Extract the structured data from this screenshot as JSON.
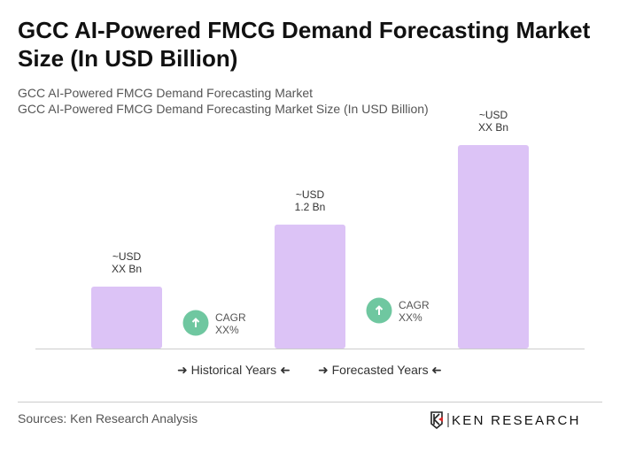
{
  "title": "GCC AI-Powered FMCG Demand Forecasting Market Size (In USD Billion)",
  "subtitle1": "GCC AI-Powered FMCG Demand Forecasting Market",
  "subtitle2": "GCC AI-Powered FMCG Demand Forecasting Market Size (In USD Billion)",
  "chart_data": {
    "type": "bar",
    "categories": [
      "",
      "",
      ""
    ],
    "values": [
      0.6,
      1.2,
      1.97
    ],
    "data_labels": [
      [
        "~USD",
        "XX Bn"
      ],
      [
        "~USD",
        "1.2 Bn"
      ],
      [
        "~USD",
        "XX Bn"
      ]
    ],
    "cagr_labels": [
      [
        "CAGR",
        "XX%"
      ],
      [
        "CAGR",
        "XX%"
      ]
    ],
    "bar_color": "#dcc3f6",
    "cagr_color": "#6fc7a0",
    "grid": false
  },
  "legend": {
    "historical": "Historical Years",
    "forecasted": "Forecasted Years"
  },
  "sources": "Sources: Ken Research Analysis",
  "logo_text": "KEN RESEARCH"
}
